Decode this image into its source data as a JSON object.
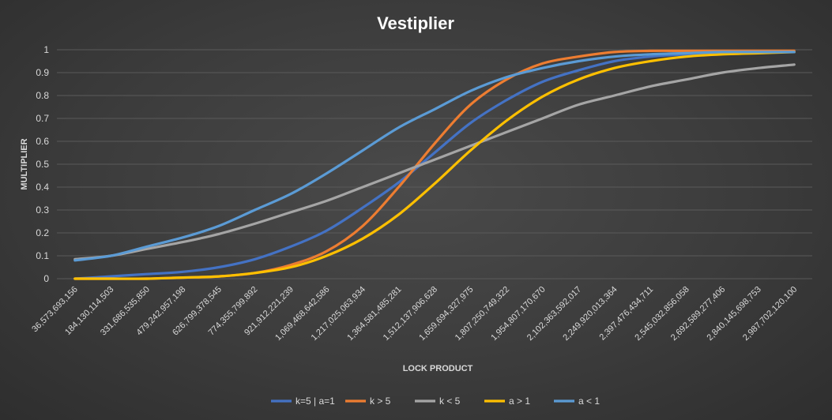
{
  "chart_data": {
    "type": "line",
    "title": "Vestiplier",
    "xlabel": "LOCK PRODUCT",
    "ylabel": "MULTIPLIER",
    "ylim": [
      0,
      1
    ],
    "yticks": [
      "0",
      "0.1",
      "0.2",
      "0.3",
      "0.4",
      "0.5",
      "0.6",
      "0.7",
      "0.8",
      "0.9",
      "1"
    ],
    "grid": true,
    "legend_position": "bottom",
    "categories": [
      "36,573,693,156",
      "184,130,114,503",
      "331,686,535,850",
      "479,242,957,198",
      "626,799,378,545",
      "774,355,799,892",
      "921,912,221,239",
      "1,069,468,642,586",
      "1,217,025,063,934",
      "1,364,581,485,281",
      "1,512,137,906,628",
      "1,659,694,327,975",
      "1,807,250,749,322",
      "1,954,807,170,670",
      "2,102,363,592,017",
      "2,249,920,013,364",
      "2,397,476,434,711",
      "2,545,032,856,058",
      "2,692,589,277,406",
      "2,840,145,698,753",
      "2,987,702,120,100"
    ],
    "series": [
      {
        "name": "k=5 | a=1",
        "color": "#4472c4",
        "values": [
          0.0,
          0.01,
          0.02,
          0.03,
          0.05,
          0.085,
          0.14,
          0.21,
          0.31,
          0.42,
          0.55,
          0.68,
          0.78,
          0.86,
          0.91,
          0.95,
          0.97,
          0.98,
          0.99,
          0.99,
          0.99
        ]
      },
      {
        "name": "k > 5",
        "color": "#ed7d31",
        "values": [
          0.0,
          0.0,
          0.0,
          0.005,
          0.01,
          0.025,
          0.06,
          0.12,
          0.23,
          0.4,
          0.59,
          0.76,
          0.87,
          0.94,
          0.97,
          0.99,
          0.995,
          0.995,
          0.995,
          0.995,
          0.995
        ]
      },
      {
        "name": "k < 5",
        "color": "#a5a5a5",
        "values": [
          0.085,
          0.1,
          0.13,
          0.16,
          0.195,
          0.24,
          0.29,
          0.34,
          0.4,
          0.46,
          0.52,
          0.58,
          0.64,
          0.7,
          0.76,
          0.8,
          0.84,
          0.87,
          0.9,
          0.92,
          0.935
        ]
      },
      {
        "name": "a > 1",
        "color": "#ffc000",
        "values": [
          0.0,
          0.0,
          0.0,
          0.005,
          0.01,
          0.025,
          0.05,
          0.1,
          0.175,
          0.28,
          0.415,
          0.56,
          0.69,
          0.795,
          0.87,
          0.92,
          0.95,
          0.97,
          0.98,
          0.985,
          0.99
        ]
      },
      {
        "name": "a < 1",
        "color": "#5b9bd5",
        "values": [
          0.08,
          0.1,
          0.14,
          0.18,
          0.23,
          0.3,
          0.37,
          0.46,
          0.56,
          0.66,
          0.74,
          0.82,
          0.88,
          0.92,
          0.95,
          0.97,
          0.98,
          0.985,
          0.99,
          0.99,
          0.99
        ]
      }
    ]
  }
}
